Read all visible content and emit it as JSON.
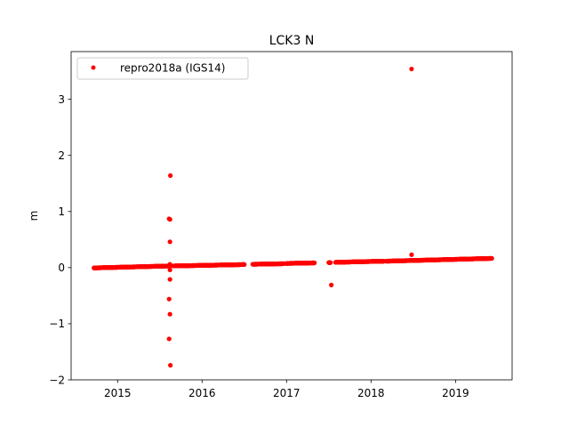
{
  "chart_data": {
    "type": "scatter",
    "title": "LCK3 N",
    "xlabel": "",
    "ylabel": "m",
    "xlim": [
      2014.45,
      2019.67
    ],
    "ylim": [
      -2.0,
      3.85
    ],
    "xticks": [
      2015,
      2016,
      2017,
      2018,
      2019
    ],
    "xtick_labels": [
      "2015",
      "2016",
      "2017",
      "2018",
      "2019"
    ],
    "yticks": [
      -2,
      -1,
      0,
      1,
      2,
      3
    ],
    "ytick_labels": [
      "−2",
      "−1",
      "0",
      "1",
      "2",
      "3"
    ],
    "grid": false,
    "legend": {
      "position": "top-left",
      "entries": [
        "repro2018a (IGS14)"
      ]
    },
    "series": [
      {
        "name": "repro2018a (IGS14)",
        "color": "#ff0000",
        "marker": "circle",
        "segments": [
          {
            "start": 2014.72,
            "end": 2015.62,
            "y_start": -0.005,
            "y_end": 0.03
          },
          {
            "start": 2015.66,
            "end": 2016.5,
            "y_start": 0.03,
            "y_end": 0.055
          },
          {
            "start": 2016.6,
            "end": 2016.97,
            "y_start": 0.06,
            "y_end": 0.07
          },
          {
            "start": 2017.0,
            "end": 2017.33,
            "y_start": 0.075,
            "y_end": 0.085
          },
          {
            "start": 2017.5,
            "end": 2017.52,
            "y_start": 0.09,
            "y_end": 0.09
          },
          {
            "start": 2017.58,
            "end": 2018.15,
            "y_start": 0.095,
            "y_end": 0.115
          },
          {
            "start": 2018.18,
            "end": 2019.43,
            "y_start": 0.115,
            "y_end": 0.165
          }
        ],
        "outliers": [
          {
            "x": 2015.61,
            "y": 0.87
          },
          {
            "x": 2015.62,
            "y": 0.86
          },
          {
            "x": 2015.625,
            "y": 1.64
          },
          {
            "x": 2015.62,
            "y": 0.46
          },
          {
            "x": 2015.62,
            "y": 0.06
          },
          {
            "x": 2015.62,
            "y": -0.04
          },
          {
            "x": 2015.62,
            "y": -0.21
          },
          {
            "x": 2015.61,
            "y": -0.56
          },
          {
            "x": 2015.62,
            "y": -0.83
          },
          {
            "x": 2015.61,
            "y": -1.27
          },
          {
            "x": 2015.625,
            "y": -1.74
          },
          {
            "x": 2017.53,
            "y": -0.31
          },
          {
            "x": 2018.48,
            "y": 3.54
          },
          {
            "x": 2018.48,
            "y": 0.23
          }
        ]
      }
    ]
  }
}
